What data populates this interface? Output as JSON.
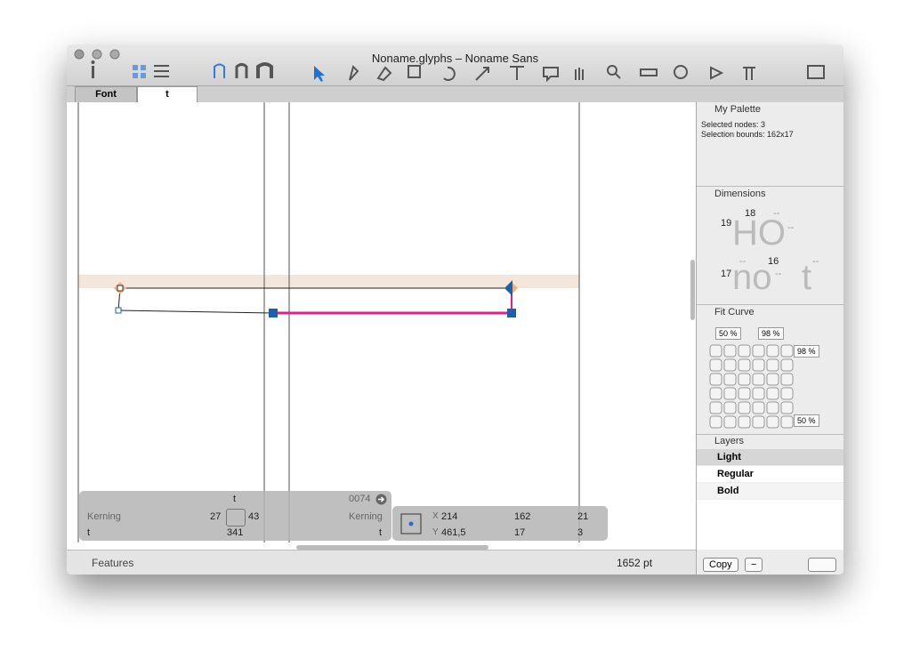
{
  "window": {
    "title": "Noname.glyphs – Noname Sans"
  },
  "tabs": [
    "Font",
    "t"
  ],
  "palette": {
    "title": "My Palette",
    "selected_nodes": "Selected nodes: 3",
    "selection_bounds": "Selection bounds: 162x17"
  },
  "dimensions": {
    "title": "Dimensions",
    "upper_sample": "HO",
    "lower_sample": "no",
    "t_sample": "t",
    "upper_values": [
      "19",
      "18",
      "--",
      "--"
    ],
    "lower_values": [
      "17",
      "--",
      "16",
      "--",
      "--"
    ]
  },
  "fit_curve": {
    "title": "Fit Curve",
    "fields": [
      "50 %",
      "98 %",
      "98 %",
      "50 %"
    ]
  },
  "layers": {
    "title": "Layers",
    "items": [
      "Light",
      "Regular",
      "Bold"
    ]
  },
  "buttons": {
    "copy": "Copy",
    "remove": "−"
  },
  "info": {
    "glyph": "t",
    "unicode": "0074",
    "left_kerning_label": "Kerning",
    "left_kerning": "27",
    "right_kerning": "43",
    "right_kerning_label": "Kerning",
    "left_group": "t",
    "width": "341",
    "right_group": "t",
    "x_label": "X",
    "x": "214",
    "y_label": "Y",
    "y": "461,5",
    "sel_width": "162",
    "sel_height": "17",
    "count_a": "21",
    "count_b": "3"
  },
  "footer": {
    "features": "Features",
    "zoom": "1652 pt"
  }
}
